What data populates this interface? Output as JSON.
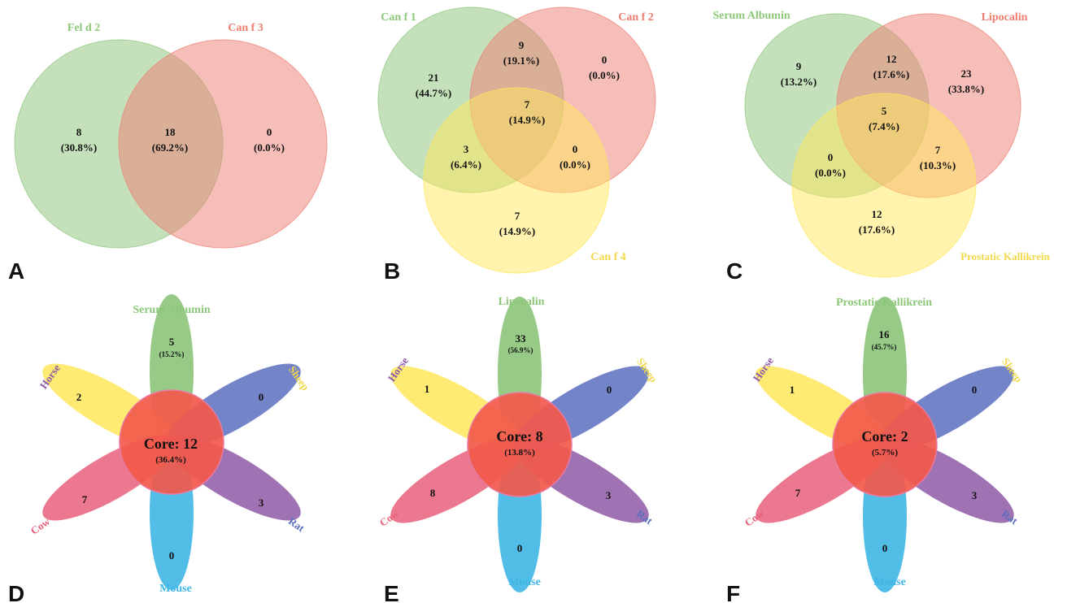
{
  "colors": {
    "green": "#8cc47a",
    "red": "#ee7e74",
    "yellow": "#ffe75c",
    "green_label": "#8cc77a",
    "red_label": "#ee7d70",
    "yellow_label": "#f2d94a",
    "purple": "#8e5aa6",
    "blue": "#5a6fbf",
    "cyan": "#3fb7e6",
    "pink": "#e8607a",
    "core": "#f2594b"
  },
  "panels": {
    "A": {
      "letter": "A",
      "set1": "Fel d 2",
      "set2": "Can f 3",
      "r1_count": "8",
      "r1_pct": "(30.8%)",
      "r12_count": "18",
      "r12_pct": "(69.2%)",
      "r2_count": "0",
      "r2_pct": "(0.0%)"
    },
    "B": {
      "letter": "B",
      "set1": "Can f 1",
      "set2": "Can f 2",
      "set3": "Can f 4",
      "r1_count": "21",
      "r1_pct": "(44.7%)",
      "r12_count": "9",
      "r12_pct": "(19.1%)",
      "r2_count": "0",
      "r2_pct": "(0.0%)",
      "r123_count": "7",
      "r123_pct": "(14.9%)",
      "r13_count": "3",
      "r13_pct": "(6.4%)",
      "r23_count": "0",
      "r23_pct": "(0.0%)",
      "r3_count": "7",
      "r3_pct": "(14.9%)"
    },
    "C": {
      "letter": "C",
      "set1": "Serum Albumin",
      "set2": "Lipocalin",
      "set3": "Prostatic Kallikrein",
      "r1_count": "9",
      "r1_pct": "(13.2%)",
      "r12_count": "12",
      "r12_pct": "(17.6%)",
      "r2_count": "23",
      "r2_pct": "(33.8%)",
      "r123_count": "5",
      "r123_pct": "(7.4%)",
      "r13_count": "0",
      "r13_pct": "(0.0%)",
      "r23_count": "7",
      "r23_pct": "(10.3%)",
      "r3_count": "12",
      "r3_pct": "(17.6%)"
    },
    "D": {
      "letter": "D",
      "title": "Serum Albumin",
      "top_count": "5",
      "top_pct": "(15.2%)",
      "horse": "Horse",
      "horse_count": "2",
      "sheep": "Sheep",
      "sheep_count": "0",
      "cow": "Cow",
      "cow_count": "7",
      "rat": "Rat",
      "rat_count": "3",
      "mouse": "Mouse",
      "mouse_count": "0",
      "core": "Core: 12",
      "core_pct": "(36.4%)"
    },
    "E": {
      "letter": "E",
      "title": "Lipocalin",
      "top_count": "33",
      "top_pct": "(56.9%)",
      "horse": "Horse",
      "horse_count": "1",
      "sheep": "Sheep",
      "sheep_count": "0",
      "cow": "Cow",
      "cow_count": "8",
      "rat": "Rat",
      "rat_count": "3",
      "mouse": "Mouse",
      "mouse_count": "0",
      "core": "Core: 8",
      "core_pct": "(13.8%)"
    },
    "F": {
      "letter": "F",
      "title": "Prostatic Kallikrein",
      "top_count": "16",
      "top_pct": "(45.7%)",
      "horse": "Horse",
      "horse_count": "1",
      "sheep": "Sheep",
      "sheep_count": "0",
      "cow": "Cow",
      "cow_count": "7",
      "rat": "Rat",
      "rat_count": "3",
      "mouse": "Mouse",
      "mouse_count": "0",
      "core": "Core: 2",
      "core_pct": "(5.7%)"
    }
  }
}
